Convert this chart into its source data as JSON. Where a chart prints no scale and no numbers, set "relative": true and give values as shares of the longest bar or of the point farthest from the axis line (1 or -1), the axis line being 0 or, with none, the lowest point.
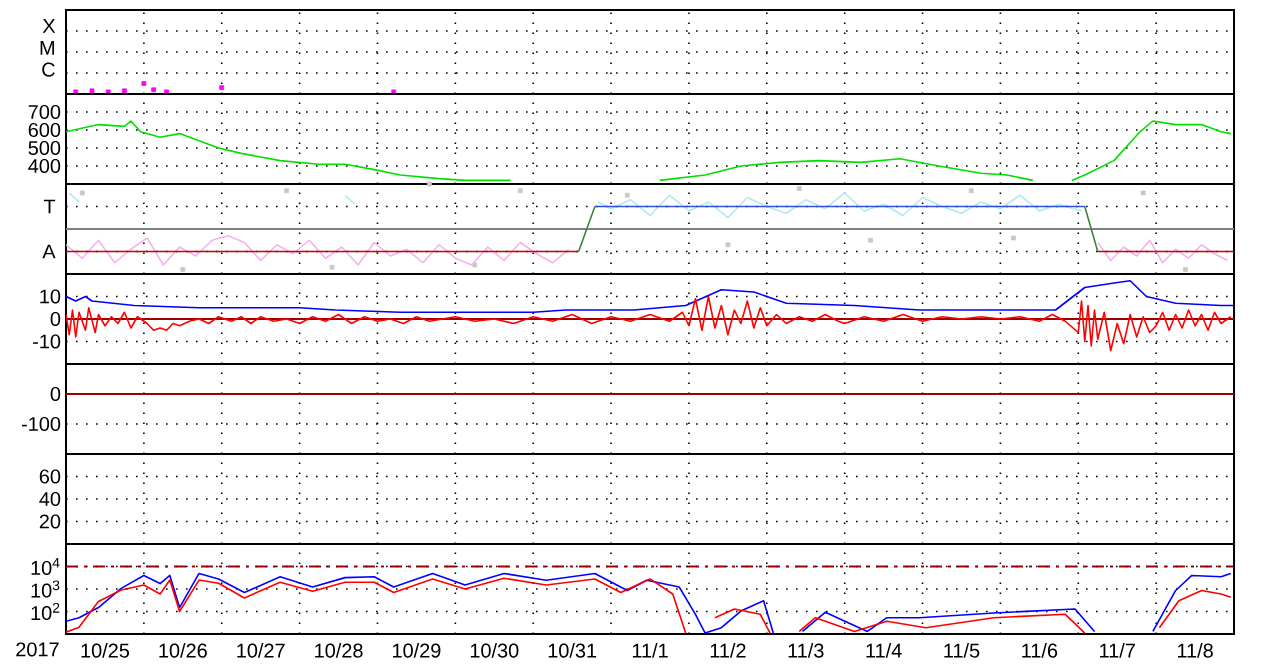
{
  "chart_data": [
    {
      "type": "scatter",
      "relative": true,
      "annotations": [
        "X",
        "M",
        "C"
      ],
      "xlim": [
        "2017-10-25",
        "2017-11-09"
      ],
      "xticks": [
        {
          "value": "2017-10-26",
          "label": null
        },
        {
          "value": "2017-10-27",
          "label": null
        },
        {
          "value": "2017-10-28",
          "label": null
        },
        {
          "value": "2017-10-29",
          "label": null
        },
        {
          "value": "2017-10-30",
          "label": null
        },
        {
          "value": "2017-10-31",
          "label": null
        },
        {
          "value": "2017-11-01",
          "label": null
        },
        {
          "value": "2017-11-02",
          "label": null
        },
        {
          "value": "2017-11-03",
          "label": null
        },
        {
          "value": "2017-11-04",
          "label": null
        },
        {
          "value": "2017-11-05",
          "label": null
        },
        {
          "value": "2017-11-06",
          "label": null
        },
        {
          "value": "2017-11-07",
          "label": null
        },
        {
          "value": "2017-11-08",
          "label": null
        }
      ],
      "tick_labels": "y",
      "grid": true,
      "marker": "square",
      "series": [
        {
          "color": "#ff00ff",
          "x": [
            "2017-10-25T03:00",
            "2017-10-25T08:00",
            "2017-10-25T13:00",
            "2017-10-25T18:00",
            "2017-10-26T00:00",
            "2017-10-26T03:00",
            "2017-10-26T07:00",
            "2017-10-27T00:00",
            "2017-10-29T05:00"
          ],
          "values": [
            0.2,
            0.3,
            0.2,
            0.3,
            1,
            0.4,
            0.2,
            0.6,
            0.2
          ]
        }
      ]
    },
    {
      "type": "line",
      "ylim": [
        300,
        800
      ],
      "yticks": [
        400,
        500,
        600,
        700
      ],
      "xlim": [
        "2017-10-25",
        "2017-11-09"
      ],
      "xticks": [
        {
          "value": "2017-10-26",
          "label": null
        },
        {
          "value": "2017-10-27",
          "label": null
        },
        {
          "value": "2017-10-28",
          "label": null
        },
        {
          "value": "2017-10-29",
          "label": null
        },
        {
          "value": "2017-10-30",
          "label": null
        },
        {
          "value": "2017-10-31",
          "label": null
        },
        {
          "value": "2017-11-01",
          "label": null
        },
        {
          "value": "2017-11-02",
          "label": null
        },
        {
          "value": "2017-11-03",
          "label": null
        },
        {
          "value": "2017-11-04",
          "label": null
        },
        {
          "value": "2017-11-05",
          "label": null
        },
        {
          "value": "2017-11-06",
          "label": null
        },
        {
          "value": "2017-11-07",
          "label": null
        },
        {
          "value": "2017-11-08",
          "label": null
        }
      ],
      "tick_labels": "y",
      "grid": true,
      "series": [
        {
          "color": "#00e000",
          "x": [
            "2017-10-25T00:00",
            "2017-10-25T10:00",
            "2017-10-25T18:00",
            "2017-10-25T20:00",
            "2017-10-25T23:00",
            "2017-10-26T05:00",
            "2017-10-26T11:00",
            "2017-10-26T17:00",
            "2017-10-26T23:00",
            "2017-10-27T06:00",
            "2017-10-27T18:00",
            "2017-10-28T06:00",
            "2017-10-28T14:00",
            "2017-10-28T23:00",
            "2017-10-29T07:00",
            "2017-10-29T19:00",
            "2017-10-30T03:00",
            "2017-10-30T17:00",
            "2017-10-31T00:00",
            "2017-11-01T15:00",
            "2017-11-02T05:00",
            "2017-11-02T16:00",
            "2017-11-03T04:00",
            "2017-11-03T16:00",
            "2017-11-04T05:00",
            "2017-11-04T17:00",
            "2017-11-05T05:00",
            "2017-11-05T18:00",
            "2017-11-06T02:00",
            "2017-11-06T10:00",
            "2017-11-06T12:00",
            "2017-11-06T22:00",
            "2017-11-07T02:00",
            "2017-11-07T11:00",
            "2017-11-07T19:00",
            "2017-11-07T23:00",
            "2017-11-08T06:00",
            "2017-11-08T14:00",
            "2017-11-08T20:00",
            "2017-11-08T23:00"
          ],
          "values": [
            590,
            630,
            620,
            650,
            590,
            560,
            580,
            540,
            500,
            470,
            430,
            410,
            410,
            380,
            350,
            330,
            320,
            320,
            null,
            320,
            350,
            400,
            420,
            430,
            420,
            440,
            400,
            360,
            350,
            320,
            null,
            320,
            350,
            430,
            590,
            650,
            630,
            630,
            590,
            580
          ]
        }
      ]
    },
    {
      "type": "line",
      "relative": true,
      "annotations": [
        "T",
        "A"
      ],
      "xlim": [
        "2017-10-25",
        "2017-11-09"
      ],
      "xticks": [
        {
          "value": "2017-10-26",
          "label": null
        },
        {
          "value": "2017-10-27",
          "label": null
        },
        {
          "value": "2017-10-28",
          "label": null
        },
        {
          "value": "2017-10-29",
          "label": null
        },
        {
          "value": "2017-10-30",
          "label": null
        },
        {
          "value": "2017-10-31",
          "label": null
        },
        {
          "value": "2017-11-01",
          "label": null
        },
        {
          "value": "2017-11-02",
          "label": null
        },
        {
          "value": "2017-11-03",
          "label": null
        },
        {
          "value": "2017-11-04",
          "label": null
        },
        {
          "value": "2017-11-05",
          "label": null
        },
        {
          "value": "2017-11-06",
          "label": null
        },
        {
          "value": "2017-11-07",
          "label": null
        },
        {
          "value": "2017-11-08",
          "label": null
        }
      ],
      "tick_labels": "y",
      "grid": true,
      "ref_lines": [
        {
          "axis": "y",
          "value": 0,
          "color": "#808080"
        }
      ],
      "series": [
        {
          "type": "scatter",
          "marker": "square",
          "color": "#c8c8c8",
          "x": [
            "2017-10-25T05:00",
            "2017-10-26T12:00",
            "2017-10-27T20:00",
            "2017-10-28T10:00",
            "2017-10-29T16:00",
            "2017-10-30T06:00",
            "2017-10-30T20:00",
            "2017-11-01T05:00",
            "2017-11-02T12:00",
            "2017-11-03T10:00",
            "2017-11-04T08:00",
            "2017-11-05T15:00",
            "2017-11-06T04:00",
            "2017-11-07T20:00",
            "2017-11-08T09:00"
          ],
          "values": [
            0.8,
            -0.9,
            0.85,
            -0.85,
            1,
            -0.8,
            0.85,
            0.75,
            -0.35,
            0.9,
            -0.25,
            0.85,
            -0.2,
            0.8,
            -0.9
          ]
        },
        {
          "color": "#f8b0f0",
          "x": [
            "2017-10-25T00:00",
            "2017-10-25T05:00",
            "2017-10-25T10:00",
            "2017-10-25T15:00",
            "2017-10-25T20:00",
            "2017-10-26T01:00",
            "2017-10-26T06:00",
            "2017-10-26T11:00",
            "2017-10-26T16:00",
            "2017-10-26T21:00",
            "2017-10-27T02:00",
            "2017-10-27T07:00",
            "2017-10-27T12:00",
            "2017-10-27T17:00",
            "2017-10-27T22:00",
            "2017-10-28T03:00",
            "2017-10-28T08:00",
            "2017-10-28T13:00",
            "2017-10-28T18:00",
            "2017-10-28T23:00",
            "2017-10-29T04:00",
            "2017-10-29T09:00",
            "2017-10-29T14:00",
            "2017-10-29T19:00",
            "2017-10-30T00:00",
            "2017-10-30T05:00",
            "2017-10-30T10:00",
            "2017-10-30T15:00",
            "2017-10-30T20:00",
            "2017-10-31T01:00",
            "2017-10-31T06:00",
            "2017-10-31T11:00",
            "2017-11-03T00:00",
            "2017-11-07T06:00",
            "2017-11-07T10:00",
            "2017-11-07T14:00",
            "2017-11-07T18:00",
            "2017-11-07T22:00",
            "2017-11-08T02:00",
            "2017-11-08T06:00",
            "2017-11-08T10:00",
            "2017-11-08T14:00",
            "2017-11-08T18:00",
            "2017-11-08T22:00"
          ],
          "values": [
            -0.35,
            -0.65,
            -0.25,
            -0.75,
            -0.45,
            -0.2,
            -0.8,
            -0.4,
            -0.6,
            -0.25,
            -0.15,
            -0.3,
            -0.7,
            -0.35,
            -0.55,
            -0.25,
            -0.65,
            -0.4,
            -0.8,
            -0.3,
            -0.6,
            -0.45,
            -0.75,
            -0.35,
            -0.65,
            -0.8,
            -0.4,
            -0.7,
            -0.3,
            -0.55,
            -0.75,
            -0.45,
            null,
            -0.3,
            -0.7,
            -0.4,
            -0.6,
            -0.25,
            -0.75,
            -0.45,
            -0.65,
            -0.35,
            -0.55,
            -0.7
          ]
        },
        {
          "color": "#b0e8f8",
          "x": [
            "2017-10-25T01:00",
            "2017-10-25T04:00",
            "2017-10-25T06:00",
            "2017-10-28T14:00",
            "2017-10-28T17:00",
            "2017-10-28T20:00",
            "2017-10-31T20:00",
            "2017-11-01T00:00",
            "2017-11-01T06:00",
            "2017-11-01T12:00",
            "2017-11-01T18:00",
            "2017-11-02T00:00",
            "2017-11-02T06:00",
            "2017-11-02T12:00",
            "2017-11-02T18:00",
            "2017-11-03T00:00",
            "2017-11-03T06:00",
            "2017-11-03T12:00",
            "2017-11-03T18:00",
            "2017-11-04T00:00",
            "2017-11-04T06:00",
            "2017-11-04T12:00",
            "2017-11-04T18:00",
            "2017-11-05T00:00",
            "2017-11-05T06:00",
            "2017-11-05T12:00",
            "2017-11-05T18:00",
            "2017-11-06T00:00",
            "2017-11-06T06:00",
            "2017-11-06T12:00",
            "2017-11-06T18:00",
            "2017-11-07T01:00"
          ],
          "values": [
            0.8,
            0.6,
            null,
            0.75,
            0.55,
            null,
            0.6,
            0.45,
            0.65,
            0.3,
            0.75,
            0.4,
            0.6,
            0.25,
            0.7,
            0.5,
            0.35,
            0.65,
            0.45,
            0.8,
            0.4,
            0.55,
            0.3,
            0.7,
            0.5,
            0.35,
            0.6,
            0.45,
            0.75,
            0.4,
            0.55,
            0.4
          ]
        },
        {
          "color": "#cc0000",
          "x": [
            "2017-10-25T00:00",
            "2017-10-31T14:00",
            "2017-10-31T16:00",
            "2017-11-07T06:00",
            "2017-11-09T00:00"
          ],
          "values": [
            -0.5,
            -0.5,
            null,
            -0.5,
            -0.5
          ]
        },
        {
          "color": "#408040",
          "x": [
            "2017-10-31T14:00",
            "2017-10-31T19:00",
            "2017-11-03T00:00",
            "2017-11-07T02:00",
            "2017-11-07T06:00"
          ],
          "values": [
            -0.5,
            0.5,
            null,
            0.5,
            -0.5
          ]
        },
        {
          "color": "#3050e0",
          "x": [
            "2017-10-31T19:00",
            "2017-11-07T02:00"
          ],
          "values": [
            0.5,
            0.5
          ]
        }
      ]
    },
    {
      "type": "line",
      "ylim": [
        -20,
        20
      ],
      "yticks": [
        -10,
        0,
        10
      ],
      "xlim": [
        "2017-10-25",
        "2017-11-09"
      ],
      "xticks": [
        {
          "value": "2017-10-26",
          "label": null
        },
        {
          "value": "2017-10-27",
          "label": null
        },
        {
          "value": "2017-10-28",
          "label": null
        },
        {
          "value": "2017-10-29",
          "label": null
        },
        {
          "value": "2017-10-30",
          "label": null
        },
        {
          "value": "2017-10-31",
          "label": null
        },
        {
          "value": "2017-11-01",
          "label": null
        },
        {
          "value": "2017-11-02",
          "label": null
        },
        {
          "value": "2017-11-03",
          "label": null
        },
        {
          "value": "2017-11-04",
          "label": null
        },
        {
          "value": "2017-11-05",
          "label": null
        },
        {
          "value": "2017-11-06",
          "label": null
        },
        {
          "value": "2017-11-07",
          "label": null
        },
        {
          "value": "2017-11-08",
          "label": null
        }
      ],
      "tick_labels": "y",
      "grid": true,
      "ref_lines": [
        {
          "axis": "y",
          "value": 0,
          "color": "#a00000"
        }
      ],
      "series": [
        {
          "color": "#0000ff",
          "x": [
            "2017-10-25T00:00",
            "2017-10-25T03:00",
            "2017-10-25T06:00",
            "2017-10-25T08:00",
            "2017-10-25T21:00",
            "2017-10-26T17:00",
            "2017-10-28T00:00",
            "2017-10-28T11:00",
            "2017-10-29T07:00",
            "2017-10-30T14:00",
            "2017-10-31T00:00",
            "2017-10-31T10:00",
            "2017-11-01T07:00",
            "2017-11-01T23:00",
            "2017-11-02T10:00",
            "2017-11-02T20:00",
            "2017-11-03T06:00",
            "2017-11-04T03:00",
            "2017-11-04T23:00",
            "2017-11-06T17:00",
            "2017-11-07T02:00",
            "2017-11-07T11:00",
            "2017-11-07T16:00",
            "2017-11-07T21:00",
            "2017-11-08T06:00",
            "2017-11-08T20:00",
            "2017-11-09T00:00"
          ],
          "values": [
            10,
            8,
            10,
            8,
            6,
            5,
            5,
            4,
            3,
            3,
            3,
            4,
            4,
            6,
            13,
            12,
            7,
            6,
            4,
            4,
            14,
            16,
            17,
            10,
            7,
            6,
            6
          ]
        },
        {
          "color": "#ff0000",
          "x": [
            "2017-10-25T00:00",
            "2017-10-25T01:00",
            "2017-10-25T02:00",
            "2017-10-25T03:00",
            "2017-10-25T04:00",
            "2017-10-25T06:00",
            "2017-10-25T07:00",
            "2017-10-25T09:00",
            "2017-10-25T10:00",
            "2017-10-25T12:00",
            "2017-10-25T14:00",
            "2017-10-25T16:00",
            "2017-10-25T18:00",
            "2017-10-25T20:00",
            "2017-10-25T22:00",
            "2017-10-26T01:00",
            "2017-10-26T03:00",
            "2017-10-26T05:00",
            "2017-10-26T07:00",
            "2017-10-26T09:00",
            "2017-10-26T11:00",
            "2017-10-26T14:00",
            "2017-10-26T17:00",
            "2017-10-26T20:00",
            "2017-10-26T23:00",
            "2017-10-27T03:00",
            "2017-10-27T06:00",
            "2017-10-27T09:00",
            "2017-10-27T12:00",
            "2017-10-27T16:00",
            "2017-10-27T20:00",
            "2017-10-28T00:00",
            "2017-10-28T04:00",
            "2017-10-28T08:00",
            "2017-10-28T12:00",
            "2017-10-28T16:00",
            "2017-10-28T20:00",
            "2017-10-29T00:00",
            "2017-10-29T04:00",
            "2017-10-29T08:00",
            "2017-10-29T12:00",
            "2017-10-29T16:00",
            "2017-10-29T20:00",
            "2017-10-30T00:00",
            "2017-10-30T06:00",
            "2017-10-30T12:00",
            "2017-10-30T18:00",
            "2017-10-31T00:00",
            "2017-10-31T06:00",
            "2017-10-31T12:00",
            "2017-10-31T18:00",
            "2017-11-01T00:00",
            "2017-11-01T06:00",
            "2017-11-01T12:00",
            "2017-11-01T18:00",
            "2017-11-01T22:00",
            "2017-11-02T00:00",
            "2017-11-02T02:00",
            "2017-11-02T04:00",
            "2017-11-02T06:00",
            "2017-11-02T08:00",
            "2017-11-02T10:00",
            "2017-11-02T12:00",
            "2017-11-02T14:00",
            "2017-11-02T16:00",
            "2017-11-02T18:00",
            "2017-11-02T20:00",
            "2017-11-02T22:00",
            "2017-11-03T00:00",
            "2017-11-03T03:00",
            "2017-11-03T06:00",
            "2017-11-03T10:00",
            "2017-11-03T14:00",
            "2017-11-03T18:00",
            "2017-11-03T22:00",
            "2017-11-04T00:00",
            "2017-11-04T06:00",
            "2017-11-04T12:00",
            "2017-11-04T18:00",
            "2017-11-05T00:00",
            "2017-11-05T06:00",
            "2017-11-05T12:00",
            "2017-11-05T18:00",
            "2017-11-06T00:00",
            "2017-11-06T06:00",
            "2017-11-06T12:00",
            "2017-11-06T16:00",
            "2017-11-06T20:00",
            "2017-11-07T00:00",
            "2017-11-07T01:00",
            "2017-11-07T02:00",
            "2017-11-07T03:00",
            "2017-11-07T04:00",
            "2017-11-07T05:00",
            "2017-11-07T06:00",
            "2017-11-07T08:00",
            "2017-11-07T10:00",
            "2017-11-07T12:00",
            "2017-11-07T14:00",
            "2017-11-07T16:00",
            "2017-11-07T18:00",
            "2017-11-07T20:00",
            "2017-11-07T22:00",
            "2017-11-08T00:00",
            "2017-11-08T02:00",
            "2017-11-08T04:00",
            "2017-11-08T06:00",
            "2017-11-08T08:00",
            "2017-11-08T10:00",
            "2017-11-08T12:00",
            "2017-11-08T14:00",
            "2017-11-08T16:00",
            "2017-11-08T18:00",
            "2017-11-08T20:00",
            "2017-11-08T23:00"
          ],
          "values": [
            2,
            -7,
            4,
            -8,
            3,
            -5,
            5,
            -6,
            2,
            -3,
            1,
            -2,
            3,
            -4,
            1,
            -2,
            -5,
            -4,
            -5,
            -2,
            -3,
            -1,
            0,
            -2,
            1,
            -1,
            1,
            -2,
            1,
            -1,
            0,
            -2,
            1,
            -1,
            2,
            -2,
            1,
            -1,
            0,
            -2,
            1,
            -1,
            0,
            1,
            -1,
            0,
            -2,
            1,
            -1,
            2,
            -2,
            1,
            -1,
            2,
            -1,
            3,
            -3,
            9,
            -5,
            10,
            -4,
            6,
            -7,
            4,
            -2,
            8,
            -4,
            5,
            -3,
            2,
            -2,
            1,
            -1,
            2,
            -1,
            -2,
            1,
            -1,
            2,
            -1,
            1,
            0,
            1,
            0,
            1,
            -1,
            2,
            -1,
            -6,
            8,
            -10,
            6,
            -12,
            4,
            -9,
            3,
            -14,
            -2,
            -11,
            2,
            -8,
            1,
            -6,
            -3,
            3,
            -5,
            2,
            -4,
            4,
            -3,
            2,
            -5,
            3,
            -2,
            1
          ]
        }
      ]
    },
    {
      "type": "line",
      "ylim": [
        -200,
        100
      ],
      "yticks": [
        -100,
        0
      ],
      "xlim": [
        "2017-10-25",
        "2017-11-09"
      ],
      "xticks": [
        {
          "value": "2017-10-26",
          "label": null
        },
        {
          "value": "2017-10-27",
          "label": null
        },
        {
          "value": "2017-10-28",
          "label": null
        },
        {
          "value": "2017-10-29",
          "label": null
        },
        {
          "value": "2017-10-30",
          "label": null
        },
        {
          "value": "2017-10-31",
          "label": null
        },
        {
          "value": "2017-11-01",
          "label": null
        },
        {
          "value": "2017-11-02",
          "label": null
        },
        {
          "value": "2017-11-03",
          "label": null
        },
        {
          "value": "2017-11-04",
          "label": null
        },
        {
          "value": "2017-11-05",
          "label": null
        },
        {
          "value": "2017-11-06",
          "label": null
        },
        {
          "value": "2017-11-07",
          "label": null
        },
        {
          "value": "2017-11-08",
          "label": null
        }
      ],
      "tick_labels": "y",
      "grid": true,
      "ref_lines": [
        {
          "axis": "y",
          "value": 0,
          "color": "#a00000"
        }
      ]
    },
    {
      "type": "line",
      "ylim": [
        0,
        80
      ],
      "yticks": [
        20,
        40,
        60
      ],
      "xlim": [
        "2017-10-25",
        "2017-11-09"
      ],
      "xticks": [
        {
          "value": "2017-10-26",
          "label": null
        },
        {
          "value": "2017-10-27",
          "label": null
        },
        {
          "value": "2017-10-28",
          "label": null
        },
        {
          "value": "2017-10-29",
          "label": null
        },
        {
          "value": "2017-10-30",
          "label": null
        },
        {
          "value": "2017-10-31",
          "label": null
        },
        {
          "value": "2017-11-01",
          "label": null
        },
        {
          "value": "2017-11-02",
          "label": null
        },
        {
          "value": "2017-11-03",
          "label": null
        },
        {
          "value": "2017-11-04",
          "label": null
        },
        {
          "value": "2017-11-05",
          "label": null
        },
        {
          "value": "2017-11-06",
          "label": null
        },
        {
          "value": "2017-11-07",
          "label": null
        },
        {
          "value": "2017-11-08",
          "label": null
        }
      ],
      "tick_labels": "y",
      "grid": true
    },
    {
      "type": "line",
      "log": true,
      "ylim": [
        10,
        100000
      ],
      "yticks": [
        {
          "value": 100,
          "label": "10$^{2}$"
        },
        {
          "value": 1000,
          "label": "10$^{3}$"
        },
        {
          "value": 10000,
          "label": "10$^{4}$"
        }
      ],
      "xlim": [
        "2017-10-25",
        "2017-11-09"
      ],
      "xticks": [
        {
          "value": "2017-10-26",
          "label": null
        },
        {
          "value": "2017-10-27",
          "label": null
        },
        {
          "value": "2017-10-28",
          "label": null
        },
        {
          "value": "2017-10-29",
          "label": null
        },
        {
          "value": "2017-10-30",
          "label": null
        },
        {
          "value": "2017-10-31",
          "label": null
        },
        {
          "value": "2017-11-01",
          "label": null
        },
        {
          "value": "2017-11-02",
          "label": null
        },
        {
          "value": "2017-11-03",
          "label": null
        },
        {
          "value": "2017-11-04",
          "label": null
        },
        {
          "value": "2017-11-05",
          "label": null
        },
        {
          "value": "2017-11-06",
          "label": null
        },
        {
          "value": "2017-11-07",
          "label": null
        },
        {
          "value": "2017-11-08",
          "label": null
        },
        {
          "value": "2017-10-25T12:00",
          "label": "10/25"
        },
        {
          "value": "2017-10-26T12:00",
          "label": "10/26"
        },
        {
          "value": "2017-10-27T12:00",
          "label": "10/27"
        },
        {
          "value": "2017-10-28T12:00",
          "label": "10/28"
        },
        {
          "value": "2017-10-29T12:00",
          "label": "10/29"
        },
        {
          "value": "2017-10-30T12:00",
          "label": "10/30"
        },
        {
          "value": "2017-10-31T12:00",
          "label": "10/31"
        },
        {
          "value": "2017-11-01T12:00",
          "label": "11/1"
        },
        {
          "value": "2017-11-02T12:00",
          "label": "11/2"
        },
        {
          "value": "2017-11-03T12:00",
          "label": "11/3"
        },
        {
          "value": "2017-11-04T12:00",
          "label": "11/4"
        },
        {
          "value": "2017-11-05T12:00",
          "label": "11/5"
        },
        {
          "value": "2017-11-06T12:00",
          "label": "11/6"
        },
        {
          "value": "2017-11-07T12:00",
          "label": "11/7"
        },
        {
          "value": "2017-11-08T12:00",
          "label": "11/8"
        }
      ],
      "grid": true,
      "xlabel": "2017",
      "ref_lines": [
        {
          "axis": "y",
          "value": 10000,
          "color": "#a00000",
          "line_style": "dashed"
        }
      ],
      "series": [
        {
          "color": "#0000ff",
          "x": [
            "2017-10-25T00:00",
            "2017-10-25T04:00",
            "2017-10-25T10:00",
            "2017-10-25T17:00",
            "2017-10-26T00:00",
            "2017-10-26T05:00",
            "2017-10-26T08:00",
            "2017-10-26T11:00",
            "2017-10-26T17:00",
            "2017-10-26T23:00",
            "2017-10-27T07:00",
            "2017-10-27T18:00",
            "2017-10-28T04:00",
            "2017-10-28T14:00",
            "2017-10-28T23:00",
            "2017-10-29T05:00",
            "2017-10-29T17:00",
            "2017-10-30T03:00",
            "2017-10-30T15:00",
            "2017-10-31T04:00",
            "2017-10-31T19:00",
            "2017-11-01T05:00",
            "2017-11-01T11:00",
            "2017-11-01T21:00",
            "2017-11-02T02:00",
            "2017-11-02T05:00",
            "2017-11-02T10:00",
            "2017-11-02T16:00",
            "2017-11-02T23:00",
            "2017-11-03T02:00",
            "2017-11-03T04:00",
            "2017-11-03T11:00",
            "2017-11-03T18:00",
            "2017-11-04T07:00",
            "2017-11-04T13:00",
            "2017-11-04T23:00",
            "2017-11-05T22:00",
            "2017-11-06T23:00",
            "2017-11-07T05:00",
            "2017-11-07T12:00",
            "2017-11-07T23:00",
            "2017-11-08T06:00",
            "2017-11-08T11:00",
            "2017-11-08T20:00",
            "2017-11-08T23:00"
          ],
          "values": [
            37,
            53,
            150,
            1070,
            4000,
            1740,
            4000,
            150,
            4900,
            2800,
            700,
            3500,
            1230,
            3200,
            3500,
            1230,
            4900,
            1520,
            4900,
            2450,
            4900,
            860,
            2450,
            1230,
            75,
            11,
            19,
            105,
            300,
            11,
            null,
            13,
            92,
            13,
            53,
            53,
            86,
            130,
            13,
            null,
            13,
            860,
            4000,
            3500,
            4900
          ]
        },
        {
          "color": "#ff0000",
          "x": [
            "2017-10-25T00:00",
            "2017-10-25T04:00",
            "2017-10-25T10:00",
            "2017-10-25T17:00",
            "2017-10-26T00:00",
            "2017-10-26T05:00",
            "2017-10-26T08:00",
            "2017-10-26T11:00",
            "2017-10-26T17:00",
            "2017-10-26T23:00",
            "2017-10-27T07:00",
            "2017-10-27T18:00",
            "2017-10-28T04:00",
            "2017-10-28T14:00",
            "2017-10-28T23:00",
            "2017-10-29T05:00",
            "2017-10-29T17:00",
            "2017-10-30T03:00",
            "2017-10-30T15:00",
            "2017-10-31T04:00",
            "2017-10-31T19:00",
            "2017-11-01T03:00",
            "2017-11-01T12:00",
            "2017-11-01T19:00",
            "2017-11-01T23:00",
            "2017-11-02T01:00",
            "2017-11-02T08:00",
            "2017-11-02T14:00",
            "2017-11-02T22:00",
            "2017-11-03T01:00",
            "2017-11-03T03:00",
            "2017-11-03T10:00",
            "2017-11-03T15:00",
            "2017-11-04T03:00",
            "2017-11-04T13:00",
            "2017-11-05T01:00",
            "2017-11-05T22:00",
            "2017-11-06T20:00",
            "2017-11-07T02:00",
            "2017-11-07T10:00",
            "2017-11-08T01:00",
            "2017-11-08T07:00",
            "2017-11-08T14:00",
            "2017-11-08T20:00",
            "2017-11-08T23:00"
          ],
          "values": [
            12,
            20,
            280,
            900,
            1500,
            600,
            2500,
            100,
            2500,
            1800,
            400,
            2000,
            800,
            2000,
            2000,
            700,
            2800,
            1000,
            3000,
            1500,
            2800,
            700,
            2800,
            600,
            11,
            null,
            53,
            130,
            75,
            11,
            null,
            13,
            53,
            13,
            37,
            19,
            53,
            75,
            11,
            null,
            19,
            300,
            860,
            600,
            430
          ]
        }
      ]
    }
  ]
}
